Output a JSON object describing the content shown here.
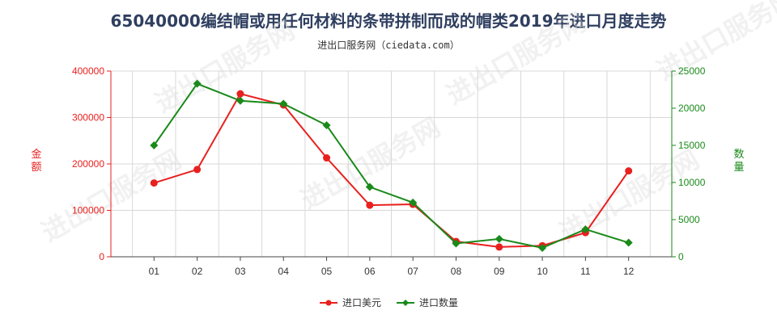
{
  "chart_data": {
    "type": "line",
    "title": "65040000编结帽或用任何材料的条带拼制而成的帽类2019年进口月度走势",
    "subtitle": "进出口服务网（ciedata.com）",
    "categories": [
      "01",
      "02",
      "03",
      "04",
      "05",
      "06",
      "07",
      "08",
      "09",
      "10",
      "11",
      "12"
    ],
    "y_left": {
      "label": "金额",
      "min": 0,
      "max": 400000,
      "ticks": [
        "0",
        "100000",
        "200000",
        "300000",
        "400000"
      ],
      "tick_values": [
        0,
        100000,
        200000,
        300000,
        400000
      ],
      "color": "#e8201e"
    },
    "y_right": {
      "label": "数量",
      "min": 0,
      "max": 25000,
      "ticks": [
        "0",
        "5000",
        "10000",
        "15000",
        "20000",
        "25000"
      ],
      "tick_values": [
        0,
        5000,
        10000,
        15000,
        20000,
        25000
      ],
      "color": "#1a8a1a"
    },
    "series": [
      {
        "name": "进口美元",
        "axis": "left",
        "color": "#e8201e",
        "values": [
          159000,
          188000,
          351000,
          327000,
          213000,
          111000,
          113000,
          33000,
          21000,
          24000,
          52000,
          185000
        ]
      },
      {
        "name": "进口数量",
        "axis": "right",
        "color": "#1a8a1a",
        "values": [
          15000,
          23300,
          21000,
          20600,
          17700,
          9400,
          7300,
          1800,
          2400,
          1200,
          3700,
          1900
        ]
      }
    ],
    "grid": true,
    "legend_position": "bottom"
  },
  "watermark_text": "进出口服务网"
}
